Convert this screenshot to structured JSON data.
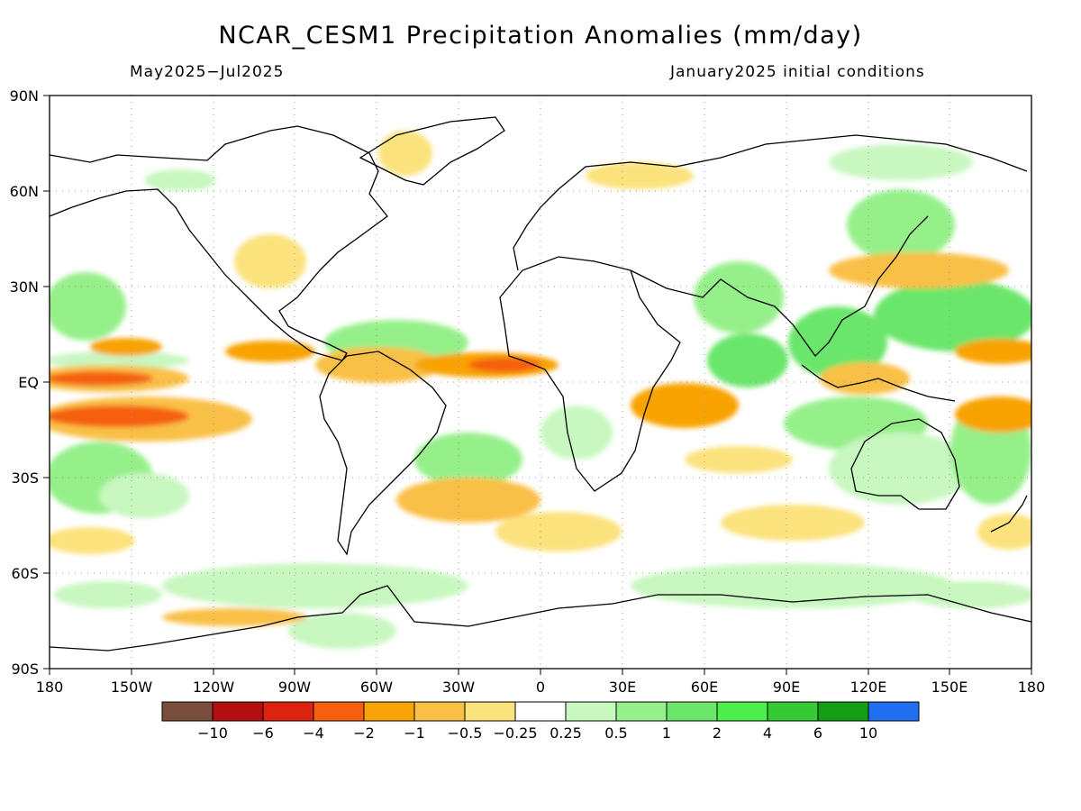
{
  "header": {
    "title": "NCAR_CESM1 Precipitation Anomalies (mm/day)",
    "period": "May2025−Jul2025",
    "init": "January2025 initial conditions"
  },
  "axes": {
    "lon_labels": [
      "180",
      "150W",
      "120W",
      "90W",
      "60W",
      "30W",
      "0",
      "30E",
      "60E",
      "90E",
      "120E",
      "150E",
      "180"
    ],
    "lat_labels": [
      "90N",
      "60N",
      "30N",
      "EQ",
      "30S",
      "60S",
      "90S"
    ]
  },
  "colorbar": {
    "colors": [
      "#7a4e3d",
      "#b40e0e",
      "#dc2310",
      "#f55f0d",
      "#f8a306",
      "#f9c046",
      "#fbe27c",
      "#ffffff",
      "#c8f7c0",
      "#96f08a",
      "#6be66a",
      "#4ded4d",
      "#35c935",
      "#139f13",
      "#1f6ff0"
    ],
    "labels": [
      "−10",
      "−6",
      "−4",
      "−2",
      "−1",
      "−0.5",
      "−0.25",
      "0.25",
      "0.5",
      "1",
      "2",
      "4",
      "6",
      "10"
    ]
  }
}
